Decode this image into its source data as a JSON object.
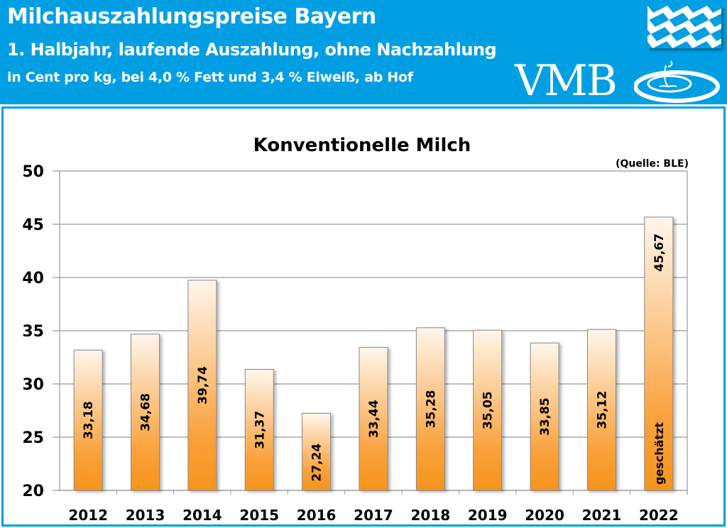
{
  "header": {
    "title": "Milchauszahlungspreise Bayern",
    "subtitle": "1. Halbjahr, laufende Auszahlung, ohne Nachzahlung",
    "unit_line": "in Cent pro kg, bei 4,0 % Fett und 3,4 % Eiweiß, ab Hof",
    "logo_text": "VMB",
    "background_color": "#009fe3"
  },
  "chart_data": {
    "type": "bar",
    "title": "Konventionelle Milch",
    "source_note": "(Quelle: BLE)",
    "categories": [
      "2012",
      "2013",
      "2014",
      "2015",
      "2016",
      "2017",
      "2018",
      "2019",
      "2020",
      "2021",
      "2022"
    ],
    "values": [
      33.18,
      34.68,
      39.74,
      31.37,
      27.24,
      33.44,
      35.28,
      35.05,
      33.85,
      35.12,
      45.67
    ],
    "data_labels": [
      "33,18",
      "34,68",
      "39,74",
      "31,37",
      "27,24",
      "33,44",
      "35,28",
      "35,05",
      "33,85",
      "35,12",
      "45,67"
    ],
    "annotations": [
      {
        "category": "2022",
        "text": "geschätzt"
      }
    ],
    "ylim": [
      20,
      50
    ],
    "yticks": [
      "20",
      "25",
      "30",
      "35",
      "40",
      "45",
      "50"
    ],
    "grid": true,
    "bar_gradient": [
      "#f7941d",
      "#fff6ec"
    ]
  }
}
